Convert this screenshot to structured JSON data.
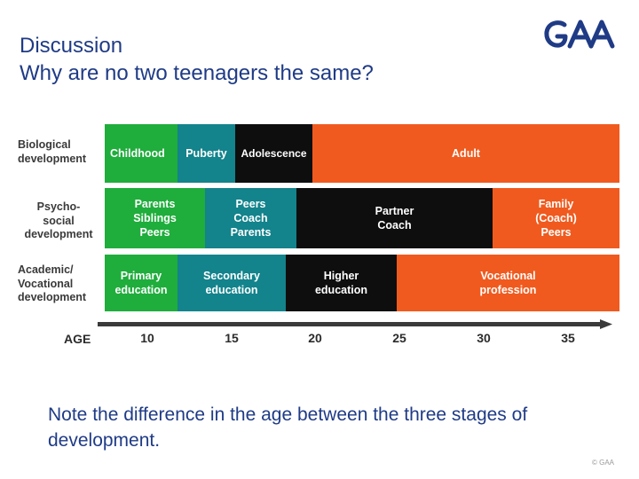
{
  "title": {
    "line1": "Discussion",
    "line2": "Why are no two teenagers the same?"
  },
  "logo": {
    "text": "GAA",
    "color": "#1f3b86"
  },
  "colors": {
    "green": "#1fad3c",
    "teal": "#13838c",
    "black": "#0e0e0e",
    "orange": "#f05a1e",
    "title": "#1f3b86"
  },
  "rows": [
    {
      "label": "Biological\ndevelopment",
      "segments": [
        {
          "label": "Childhood",
          "color": "green",
          "from": 0,
          "to": 0.142
        },
        {
          "label": "Puberty",
          "color": "teal",
          "from": 0.142,
          "to": 0.254
        },
        {
          "label": "Adolescence",
          "color": "black",
          "from": 0.254,
          "to": 0.403
        },
        {
          "label": "Adult",
          "color": "orange",
          "from": 0.403,
          "to": 1
        }
      ]
    },
    {
      "label": "Psycho-\nsocial\ndevelopment",
      "segments": [
        {
          "label": "Parents\nSiblings\nPeers",
          "color": "green",
          "from": 0,
          "to": 0.194
        },
        {
          "label": "Peers\nCoach\nParents",
          "color": "teal",
          "from": 0.194,
          "to": 0.373
        },
        {
          "label": "Partner\nCoach",
          "color": "black",
          "from": 0.373,
          "to": 0.754
        },
        {
          "label": "Family\n(Coach)\nPeers",
          "color": "orange",
          "from": 0.754,
          "to": 1
        }
      ]
    },
    {
      "label": "Academic/\nVocational\ndevelopment",
      "segments": [
        {
          "label": "Primary\neducation",
          "color": "green",
          "from": 0,
          "to": 0.142
        },
        {
          "label": "Secondary\neducation",
          "color": "teal",
          "from": 0.142,
          "to": 0.351
        },
        {
          "label": "Higher\neducation",
          "color": "black",
          "from": 0.351,
          "to": 0.567
        },
        {
          "label": "Vocational\nprofession",
          "color": "orange",
          "from": 0.567,
          "to": 1
        }
      ]
    }
  ],
  "axis": {
    "label": "AGE",
    "ticks": [
      "10",
      "15",
      "20",
      "25",
      "30",
      "35"
    ]
  },
  "note": "Note the difference in the age between the three stages of development.",
  "copyright": "© GAA"
}
